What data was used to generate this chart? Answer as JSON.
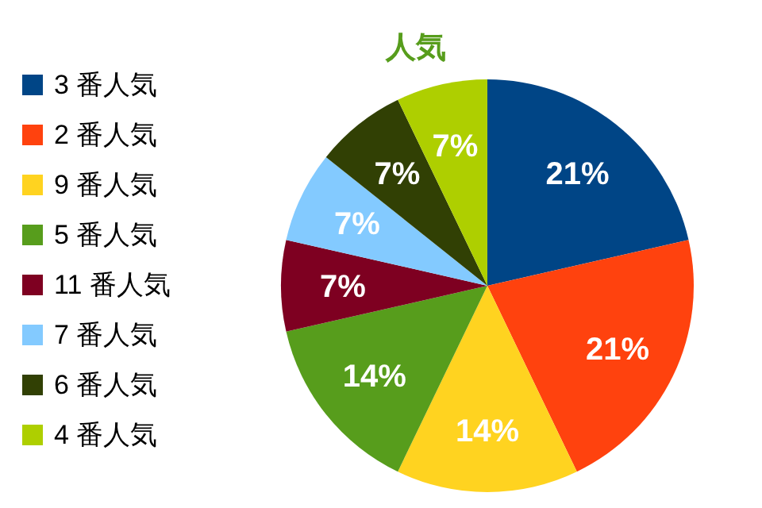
{
  "chart_data": {
    "type": "pie",
    "title": "人気",
    "categories": [
      "3 番人気",
      "2 番人気",
      "9 番人気",
      "5 番人気",
      "11 番人気",
      "7 番人気",
      "6 番人気",
      "4 番人気"
    ],
    "values": [
      21,
      21,
      14,
      14,
      7,
      7,
      7,
      7
    ],
    "value_labels": [
      "21%",
      "21%",
      "14%",
      "14%",
      "7%",
      "7%",
      "7%",
      "7%"
    ],
    "colors": [
      "#004586",
      "#ff420e",
      "#ffd320",
      "#579d1c",
      "#7e0021",
      "#83caff",
      "#314004",
      "#aecf00"
    ],
    "legend": "left"
  }
}
